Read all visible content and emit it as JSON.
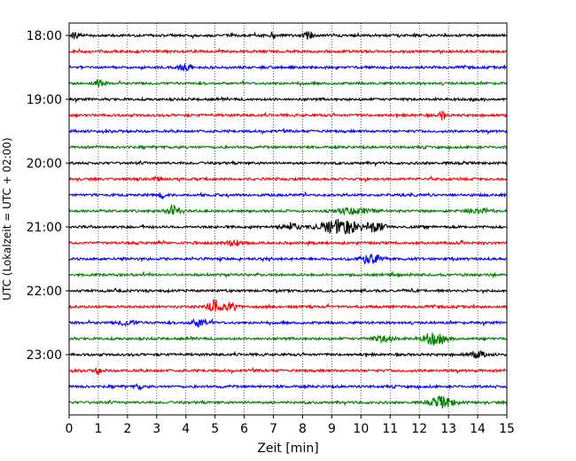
{
  "chart_data": {
    "type": "line",
    "title": "",
    "xlabel": "Zeit  [min]",
    "ylabel": "UTC (Lokalzeit = UTC + 02:00)",
    "xlim": [
      0,
      15
    ],
    "xticks": [
      0,
      1,
      2,
      3,
      4,
      5,
      6,
      7,
      8,
      9,
      10,
      11,
      12,
      13,
      14,
      15
    ],
    "x_grid": true,
    "y_grid": false,
    "start_hour": 18,
    "trace_interval_min": 15,
    "trace_count": 24,
    "y_tick_labels": [
      {
        "trace_index": 0,
        "label": "18:00"
      },
      {
        "trace_index": 4,
        "label": "19:00"
      },
      {
        "trace_index": 8,
        "label": "20:00"
      },
      {
        "trace_index": 12,
        "label": "21:00"
      },
      {
        "trace_index": 16,
        "label": "22:00"
      },
      {
        "trace_index": 20,
        "label": "23:00"
      }
    ],
    "series_colors": [
      "#000000",
      "#ff0000",
      "#0000ff",
      "#008000"
    ],
    "events": [
      {
        "trace_index": 0,
        "x": 0.2,
        "width": 0.15,
        "amp": 4
      },
      {
        "trace_index": 0,
        "x": 7.0,
        "width": 0.1,
        "amp": 4
      },
      {
        "trace_index": 0,
        "x": 8.2,
        "width": 0.15,
        "amp": 4
      },
      {
        "trace_index": 2,
        "x": 4.0,
        "width": 0.3,
        "amp": 3
      },
      {
        "trace_index": 3,
        "x": 1.0,
        "width": 0.2,
        "amp": 3
      },
      {
        "trace_index": 5,
        "x": 12.8,
        "width": 0.1,
        "amp": 5
      },
      {
        "trace_index": 9,
        "x": 3.0,
        "width": 0.1,
        "amp": 3
      },
      {
        "trace_index": 10,
        "x": 3.2,
        "width": 0.1,
        "amp": 3
      },
      {
        "trace_index": 11,
        "x": 3.6,
        "width": 0.25,
        "amp": 5
      },
      {
        "trace_index": 11,
        "x": 9.8,
        "width": 0.6,
        "amp": 3
      },
      {
        "trace_index": 11,
        "x": 14.0,
        "width": 0.4,
        "amp": 3
      },
      {
        "trace_index": 12,
        "x": 7.6,
        "width": 0.3,
        "amp": 4
      },
      {
        "trace_index": 12,
        "x": 9.3,
        "width": 0.7,
        "amp": 8
      },
      {
        "trace_index": 12,
        "x": 10.5,
        "width": 0.3,
        "amp": 6
      },
      {
        "trace_index": 13,
        "x": 5.6,
        "width": 0.3,
        "amp": 3
      },
      {
        "trace_index": 14,
        "x": 10.3,
        "width": 0.4,
        "amp": 5
      },
      {
        "trace_index": 17,
        "x": 5.0,
        "width": 0.25,
        "amp": 8
      },
      {
        "trace_index": 17,
        "x": 5.6,
        "width": 0.2,
        "amp": 4
      },
      {
        "trace_index": 18,
        "x": 2.0,
        "width": 0.3,
        "amp": 3
      },
      {
        "trace_index": 18,
        "x": 4.5,
        "width": 0.3,
        "amp": 4
      },
      {
        "trace_index": 19,
        "x": 12.5,
        "width": 0.4,
        "amp": 6
      },
      {
        "trace_index": 19,
        "x": 10.8,
        "width": 0.4,
        "amp": 3
      },
      {
        "trace_index": 20,
        "x": 14.0,
        "width": 0.3,
        "amp": 3
      },
      {
        "trace_index": 21,
        "x": 1.0,
        "width": 0.1,
        "amp": 4
      },
      {
        "trace_index": 22,
        "x": 2.4,
        "width": 0.1,
        "amp": 3
      },
      {
        "trace_index": 23,
        "x": 12.8,
        "width": 0.4,
        "amp": 6
      }
    ]
  }
}
